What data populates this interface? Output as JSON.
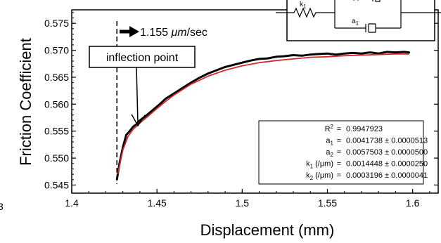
{
  "chart_data": {
    "type": "scatter",
    "xlabel": "Displacement (mm)",
    "ylabel": "Friction Coefficient",
    "xlim": [
      1.4,
      1.615
    ],
    "ylim": [
      0.5435,
      0.5775
    ],
    "x_ticks": [
      1.4,
      1.45,
      1.5,
      1.55,
      1.6
    ],
    "x_tick_labels": [
      "1.4",
      "1.45",
      "1.5",
      "1.55",
      "1.6"
    ],
    "y_ticks": [
      0.545,
      0.55,
      0.555,
      0.56,
      0.565,
      0.57,
      0.575
    ],
    "y_tick_labels": [
      "0.545",
      "0.550",
      "0.555",
      "0.560",
      "0.565",
      "0.570",
      "0.575"
    ],
    "grid": false,
    "cutoff_left_label": "3",
    "series": [
      {
        "style": "measured",
        "color": "#000000",
        "x": [
          1.4265,
          1.428,
          1.43,
          1.432,
          1.434,
          1.436,
          1.438,
          1.44,
          1.443,
          1.446,
          1.449,
          1.452,
          1.455,
          1.46,
          1.465,
          1.47,
          1.475,
          1.48,
          1.485,
          1.49,
          1.495,
          1.5,
          1.505,
          1.51,
          1.515,
          1.52,
          1.525,
          1.53,
          1.535,
          1.54,
          1.545,
          1.55,
          1.555,
          1.56,
          1.565,
          1.57,
          1.575,
          1.58,
          1.585,
          1.59,
          1.595,
          1.598
        ],
        "y": [
          0.546,
          0.549,
          0.552,
          0.5543,
          0.555,
          0.5558,
          0.5563,
          0.557,
          0.5577,
          0.5585,
          0.5593,
          0.5601,
          0.561,
          0.562,
          0.563,
          0.564,
          0.5649,
          0.5657,
          0.5663,
          0.5669,
          0.5673,
          0.5677,
          0.5681,
          0.5684,
          0.5685,
          0.5688,
          0.5689,
          0.5691,
          0.569,
          0.5692,
          0.5693,
          0.5694,
          0.5692,
          0.5694,
          0.5695,
          0.5694,
          0.5696,
          0.5694,
          0.5697,
          0.5696,
          0.5697,
          0.5696
        ]
      },
      {
        "style": "fit",
        "color": "#d42a2a",
        "x": [
          1.427,
          1.43,
          1.433,
          1.436,
          1.44,
          1.445,
          1.45,
          1.455,
          1.46,
          1.47,
          1.48,
          1.49,
          1.5,
          1.51,
          1.52,
          1.53,
          1.54,
          1.55,
          1.56,
          1.57,
          1.58,
          1.59,
          1.598
        ],
        "y": [
          0.547,
          0.5515,
          0.554,
          0.5553,
          0.5565,
          0.5578,
          0.5592,
          0.5605,
          0.5617,
          0.5637,
          0.5652,
          0.5663,
          0.5671,
          0.5677,
          0.5681,
          0.5684,
          0.5687,
          0.5688,
          0.569,
          0.5691,
          0.5692,
          0.5693,
          0.5693
        ]
      }
    ],
    "dashed_line_x": 1.4265,
    "annotations": {
      "velocity": {
        "prefix": "1.155 ",
        "unit_italic": "μm",
        "suffix": "/sec"
      },
      "inflection": {
        "label": "inflection point",
        "point_x": 1.438,
        "point_y": 0.5555
      }
    },
    "fit_results": {
      "rows": [
        {
          "param": "R",
          "sup": "2",
          "sub": "",
          "unit": "",
          "eq": "=",
          "value": "0.9947923"
        },
        {
          "param": "a",
          "sup": "",
          "sub": "1",
          "unit": "",
          "eq": "=",
          "value": "0.0041738 ± 0.0000513"
        },
        {
          "param": "a",
          "sup": "",
          "sub": "2",
          "unit": "",
          "eq": "=",
          "value": "0.0057503 ± 0.0000500"
        },
        {
          "param": "k",
          "sup": "",
          "sub": "1",
          "unit": " (/μm)",
          "eq": "=",
          "value": "0.0014448 ± 0.0000250"
        },
        {
          "param": "k",
          "sup": "",
          "sub": "2",
          "unit": " (/μm)",
          "eq": "=",
          "value": "0.0003196 ± 0.0000041"
        }
      ]
    },
    "inset": {
      "labels": {
        "k1": {
          "main": "k",
          "sub": "1"
        },
        "a1": {
          "main": "a",
          "sub": "1"
        }
      }
    }
  }
}
